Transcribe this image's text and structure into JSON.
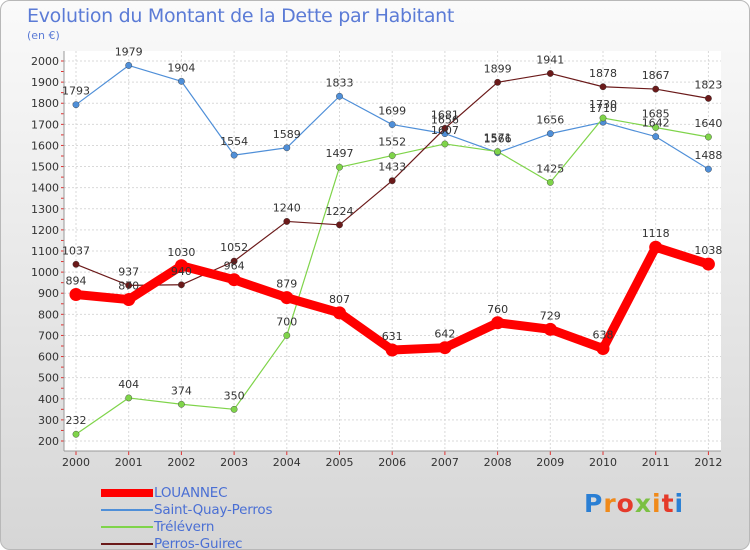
{
  "chart_data": {
    "type": "line",
    "title": "Evolution du Montant de la Dette par Habitant",
    "ylabel": "(en €)",
    "x": [
      "2000",
      "2001",
      "2002",
      "2003",
      "2004",
      "2005",
      "2006",
      "2007",
      "2008",
      "2009",
      "2010",
      "2011",
      "2012"
    ],
    "ylim": [
      200,
      2000
    ],
    "yticks": [
      200,
      300,
      400,
      500,
      600,
      700,
      800,
      900,
      1000,
      1100,
      1200,
      1300,
      1400,
      1500,
      1600,
      1700,
      1800,
      1900,
      2000
    ],
    "grid": true,
    "legend_position": "bottom",
    "series": [
      {
        "name": "LOUANNEC",
        "color": "#ff0000",
        "values": [
          894,
          870,
          1030,
          964,
          879,
          807,
          631,
          642,
          760,
          729,
          638,
          1118,
          1038
        ]
      },
      {
        "name": "Saint-Quay-Perros",
        "color": "#4f8fd8",
        "values": [
          1793,
          1979,
          1904,
          1554,
          1589,
          1833,
          1699,
          1656,
          1566,
          1656,
          1710,
          1642,
          1488
        ]
      },
      {
        "name": "Trélévern",
        "color": "#7fd44a",
        "values": [
          232,
          404,
          374,
          350,
          700,
          1497,
          1552,
          1607,
          1571,
          1425,
          1730,
          1685,
          1640
        ]
      },
      {
        "name": "Perros-Guirec",
        "color": "#6b1a1a",
        "values": [
          1037,
          937,
          940,
          1052,
          1240,
          1224,
          1433,
          1681,
          1899,
          1941,
          1878,
          1867,
          1823
        ]
      }
    ]
  },
  "logo": {
    "text": "Proxiti",
    "colors": [
      "#2a7fd4",
      "#f08a1a",
      "#e53a2a",
      "#7bc043",
      "#f08a1a",
      "#e53a2a",
      "#2a7fd4"
    ]
  }
}
